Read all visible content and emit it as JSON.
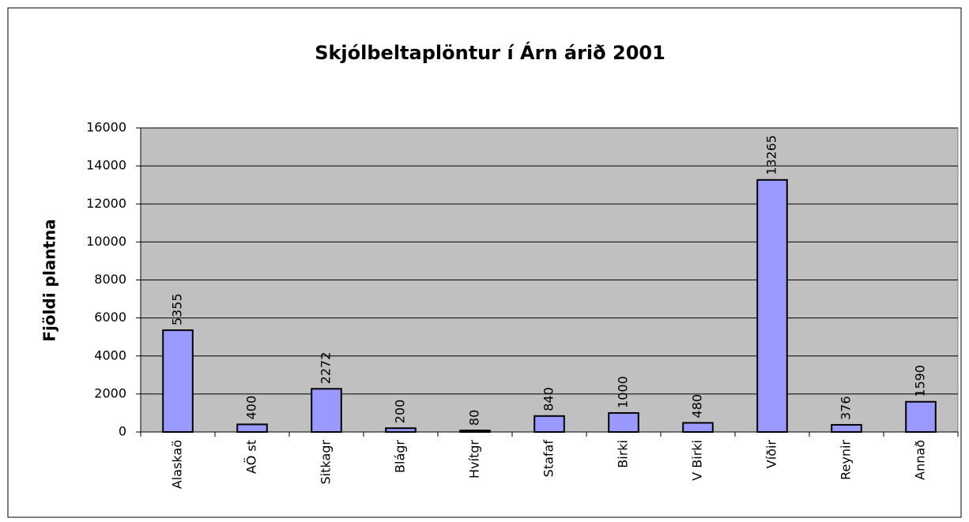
{
  "chart_data": {
    "type": "bar",
    "title": "Skjólbeltaplöntur í Árn árið 2001",
    "y_label": "Fjöldi plantna",
    "categories": [
      "Alaskaö",
      "AÖ st",
      "Sitkagr",
      "Blágr",
      "Hvítgr",
      "Stafaf",
      "Birki",
      "V Birki",
      "Víðir",
      "Reynir",
      "Annað"
    ],
    "values": [
      5355,
      400,
      2272,
      200,
      80,
      840,
      1000,
      480,
      13265,
      376,
      1590
    ],
    "color": "#9999ff",
    "plot_background": "#c0c0c0",
    "ylim": [
      0,
      16000
    ],
    "yticks": [
      0,
      2000,
      4000,
      6000,
      8000,
      10000,
      12000,
      14000,
      16000
    ],
    "grid": true,
    "data_labels": true
  }
}
